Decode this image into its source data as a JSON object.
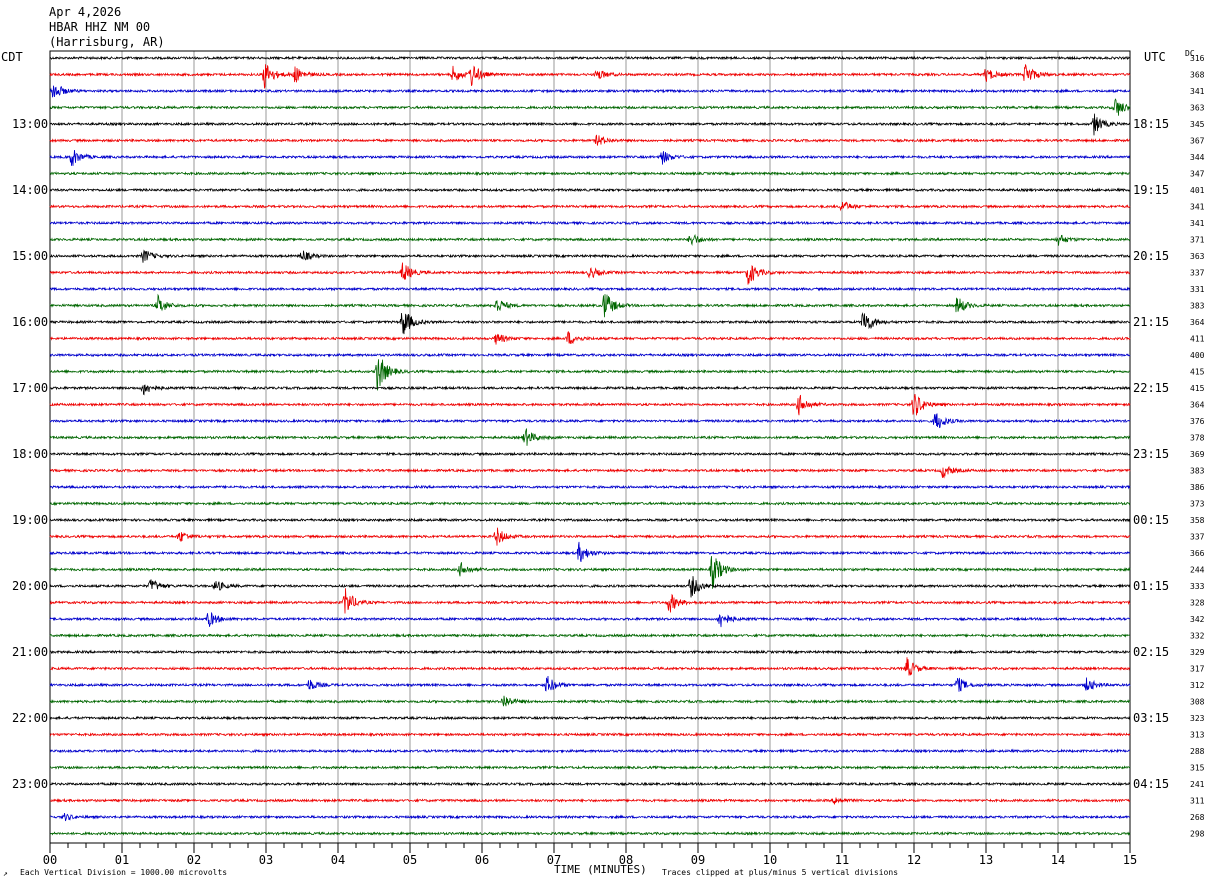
{
  "header": {
    "date": "Apr 4,2026",
    "station": "HBAR HHZ NM 00",
    "location": "(Harrisburg, AR)"
  },
  "left_tz": "CDT",
  "right_tz": "UTC",
  "dc_label": "DC",
  "footer": {
    "scale_note": "Each Vertical Division = 1000.00 microvolts",
    "xlabel": "TIME (MINUTES)",
    "clip_note": "Traces clipped at plus/minus 5 vertical divisions",
    "corner_mark": "↗"
  },
  "colors": {
    "trace_cycle": [
      "#000000",
      "#ee0000",
      "#0000cc",
      "#006600"
    ],
    "grid": "#9a9a9a"
  },
  "chart_data": {
    "type": "line",
    "title": "HBAR HHZ NM 00",
    "xlabel": "TIME (MINUTES)",
    "xlim": [
      0,
      15
    ],
    "x_ticks": [
      "00",
      "01",
      "02",
      "03",
      "04",
      "05",
      "06",
      "07",
      "08",
      "09",
      "10",
      "11",
      "12",
      "13",
      "14",
      "15"
    ],
    "left_hour_labels": [
      {
        "row": 4,
        "label": "13:00"
      },
      {
        "row": 8,
        "label": "14:00"
      },
      {
        "row": 12,
        "label": "15:00"
      },
      {
        "row": 16,
        "label": "16:00"
      },
      {
        "row": 20,
        "label": "17:00"
      },
      {
        "row": 24,
        "label": "18:00"
      },
      {
        "row": 28,
        "label": "19:00"
      },
      {
        "row": 32,
        "label": "20:00"
      },
      {
        "row": 36,
        "label": "21:00"
      },
      {
        "row": 40,
        "label": "22:00"
      },
      {
        "row": 44,
        "label": "23:00"
      }
    ],
    "right_hour_labels": [
      {
        "row": 4,
        "label": "18:15"
      },
      {
        "row": 8,
        "label": "19:15"
      },
      {
        "row": 12,
        "label": "20:15"
      },
      {
        "row": 16,
        "label": "21:15"
      },
      {
        "row": 20,
        "label": "22:15"
      },
      {
        "row": 24,
        "label": "23:15"
      },
      {
        "row": 28,
        "label": "00:15"
      },
      {
        "row": 32,
        "label": "01:15"
      },
      {
        "row": 36,
        "label": "02:15"
      },
      {
        "row": 40,
        "label": "03:15"
      },
      {
        "row": 44,
        "label": "04:15"
      }
    ],
    "dc_values": [
      "316",
      "368",
      "341",
      "363",
      "345",
      "367",
      "344",
      "347",
      "401",
      "341",
      "341",
      "371",
      "363",
      "337",
      "331",
      "383",
      "364",
      "411",
      "400",
      "415",
      "415",
      "364",
      "376",
      "378",
      "369",
      "383",
      "386",
      "373",
      "358",
      "337",
      "366",
      "244",
      "333",
      "328",
      "342",
      "332",
      "329",
      "317",
      "312",
      "308",
      "323",
      "313",
      "288",
      "315",
      "241",
      "311",
      "268",
      "298"
    ],
    "events": [
      {
        "row": 1,
        "minute": 2.98,
        "amp": 1.2
      },
      {
        "row": 1,
        "minute": 3.4,
        "amp": 0.7
      },
      {
        "row": 1,
        "minute": 5.6,
        "amp": 0.7
      },
      {
        "row": 1,
        "minute": 5.85,
        "amp": 1.0
      },
      {
        "row": 1,
        "minute": 7.6,
        "amp": 0.5
      },
      {
        "row": 1,
        "minute": 13.0,
        "amp": 0.6
      },
      {
        "row": 1,
        "minute": 13.55,
        "amp": 1.0
      },
      {
        "row": 2,
        "minute": 0.05,
        "amp": 0.8
      },
      {
        "row": 3,
        "minute": 14.8,
        "amp": 0.9
      },
      {
        "row": 4,
        "minute": 14.5,
        "amp": 0.9
      },
      {
        "row": 5,
        "minute": 7.6,
        "amp": 0.5
      },
      {
        "row": 6,
        "minute": 0.3,
        "amp": 0.8
      },
      {
        "row": 6,
        "minute": 8.5,
        "amp": 0.6
      },
      {
        "row": 9,
        "minute": 11.0,
        "amp": 0.5
      },
      {
        "row": 11,
        "minute": 8.9,
        "amp": 0.6
      },
      {
        "row": 11,
        "minute": 14.0,
        "amp": 0.5
      },
      {
        "row": 12,
        "minute": 1.3,
        "amp": 0.6
      },
      {
        "row": 12,
        "minute": 3.5,
        "amp": 0.5
      },
      {
        "row": 13,
        "minute": 4.9,
        "amp": 0.9
      },
      {
        "row": 13,
        "minute": 7.5,
        "amp": 0.5
      },
      {
        "row": 13,
        "minute": 9.7,
        "amp": 1.1
      },
      {
        "row": 15,
        "minute": 1.5,
        "amp": 0.8
      },
      {
        "row": 15,
        "minute": 6.2,
        "amp": 0.7
      },
      {
        "row": 15,
        "minute": 7.7,
        "amp": 1.3
      },
      {
        "row": 15,
        "minute": 12.6,
        "amp": 0.8
      },
      {
        "row": 16,
        "minute": 4.9,
        "amp": 1.3
      },
      {
        "row": 16,
        "minute": 11.3,
        "amp": 1.2
      },
      {
        "row": 17,
        "minute": 6.2,
        "amp": 0.5
      },
      {
        "row": 17,
        "minute": 7.2,
        "amp": 0.6
      },
      {
        "row": 19,
        "minute": 4.55,
        "amp": 1.8
      },
      {
        "row": 20,
        "minute": 1.3,
        "amp": 0.6
      },
      {
        "row": 21,
        "minute": 10.4,
        "amp": 0.9
      },
      {
        "row": 21,
        "minute": 12.0,
        "amp": 1.2
      },
      {
        "row": 22,
        "minute": 12.3,
        "amp": 0.9
      },
      {
        "row": 23,
        "minute": 6.6,
        "amp": 0.8
      },
      {
        "row": 25,
        "minute": 12.4,
        "amp": 0.6
      },
      {
        "row": 29,
        "minute": 1.8,
        "amp": 0.5
      },
      {
        "row": 29,
        "minute": 6.2,
        "amp": 0.8
      },
      {
        "row": 30,
        "minute": 7.35,
        "amp": 0.9
      },
      {
        "row": 31,
        "minute": 5.7,
        "amp": 0.6
      },
      {
        "row": 31,
        "minute": 9.2,
        "amp": 1.6
      },
      {
        "row": 32,
        "minute": 1.4,
        "amp": 0.6
      },
      {
        "row": 32,
        "minute": 2.3,
        "amp": 0.5
      },
      {
        "row": 32,
        "minute": 8.9,
        "amp": 1.0
      },
      {
        "row": 33,
        "minute": 4.1,
        "amp": 1.2
      },
      {
        "row": 33,
        "minute": 8.6,
        "amp": 0.9
      },
      {
        "row": 34,
        "minute": 2.2,
        "amp": 0.7
      },
      {
        "row": 34,
        "minute": 9.3,
        "amp": 0.8
      },
      {
        "row": 37,
        "minute": 11.9,
        "amp": 0.9
      },
      {
        "row": 38,
        "minute": 3.6,
        "amp": 0.5
      },
      {
        "row": 38,
        "minute": 6.9,
        "amp": 0.8
      },
      {
        "row": 38,
        "minute": 12.6,
        "amp": 0.7
      },
      {
        "row": 38,
        "minute": 14.4,
        "amp": 0.6
      },
      {
        "row": 39,
        "minute": 6.3,
        "amp": 0.6
      },
      {
        "row": 45,
        "minute": 10.9,
        "amp": 0.3
      },
      {
        "row": 46,
        "minute": 0.2,
        "amp": 0.3
      }
    ]
  }
}
